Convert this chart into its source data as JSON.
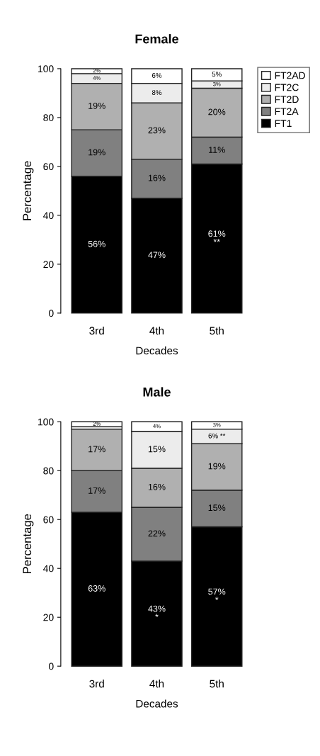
{
  "chart_data": [
    {
      "type": "bar",
      "title": "Female",
      "xlabel": "Decades",
      "ylabel": "Percentage",
      "categories": [
        "3rd",
        "4th",
        "5th"
      ],
      "stacked": true,
      "ylim": [
        0,
        100
      ],
      "yticks": [
        0,
        20,
        40,
        60,
        80,
        100
      ],
      "grid": false,
      "legend": "right",
      "series": [
        {
          "name": "FT1",
          "color": "#000000",
          "values": [
            56,
            47,
            61
          ],
          "value_labels": [
            "56%",
            "47%",
            "61%\n**"
          ]
        },
        {
          "name": "FT2A",
          "color": "#808080",
          "values": [
            19,
            16,
            11
          ],
          "value_labels": [
            "19%",
            "16%",
            "11%"
          ]
        },
        {
          "name": "FT2D",
          "color": "#b0b0b0",
          "values": [
            19,
            23,
            20
          ],
          "value_labels": [
            "19%",
            "23%",
            "20%"
          ]
        },
        {
          "name": "FT2C",
          "color": "#ececec",
          "values": [
            4,
            8,
            3
          ],
          "value_labels": [
            "4%",
            "8%",
            "3%"
          ]
        },
        {
          "name": "FT2AD",
          "color": "#ffffff",
          "values": [
            2,
            6,
            5
          ],
          "value_labels": [
            "2%",
            "6%",
            "5%"
          ]
        }
      ]
    },
    {
      "type": "bar",
      "title": "Male",
      "xlabel": "Decades",
      "ylabel": "Percentage",
      "categories": [
        "3rd",
        "4th",
        "5th"
      ],
      "stacked": true,
      "ylim": [
        0,
        100
      ],
      "yticks": [
        0,
        20,
        40,
        60,
        80,
        100
      ],
      "grid": false,
      "legend": false,
      "series": [
        {
          "color": "#000000",
          "values": [
            63,
            43,
            57
          ],
          "value_labels": [
            "63%",
            "43%\n*",
            "57%\n*"
          ]
        },
        {
          "color": "#808080",
          "values": [
            17,
            22,
            15
          ],
          "value_labels": [
            "17%",
            "22%",
            "15%"
          ]
        },
        {
          "color": "#b0b0b0",
          "values": [
            17,
            16,
            19
          ],
          "value_labels": [
            "17%",
            "16%",
            "19%"
          ]
        },
        {
          "color": "#ececec",
          "values": [
            1,
            15,
            6
          ],
          "value_labels": [
            null,
            "15%",
            "6% **"
          ]
        },
        {
          "color": "#ffffff",
          "values": [
            2,
            4,
            3
          ],
          "value_labels": [
            "2%",
            "4%",
            "3%"
          ]
        }
      ]
    }
  ]
}
